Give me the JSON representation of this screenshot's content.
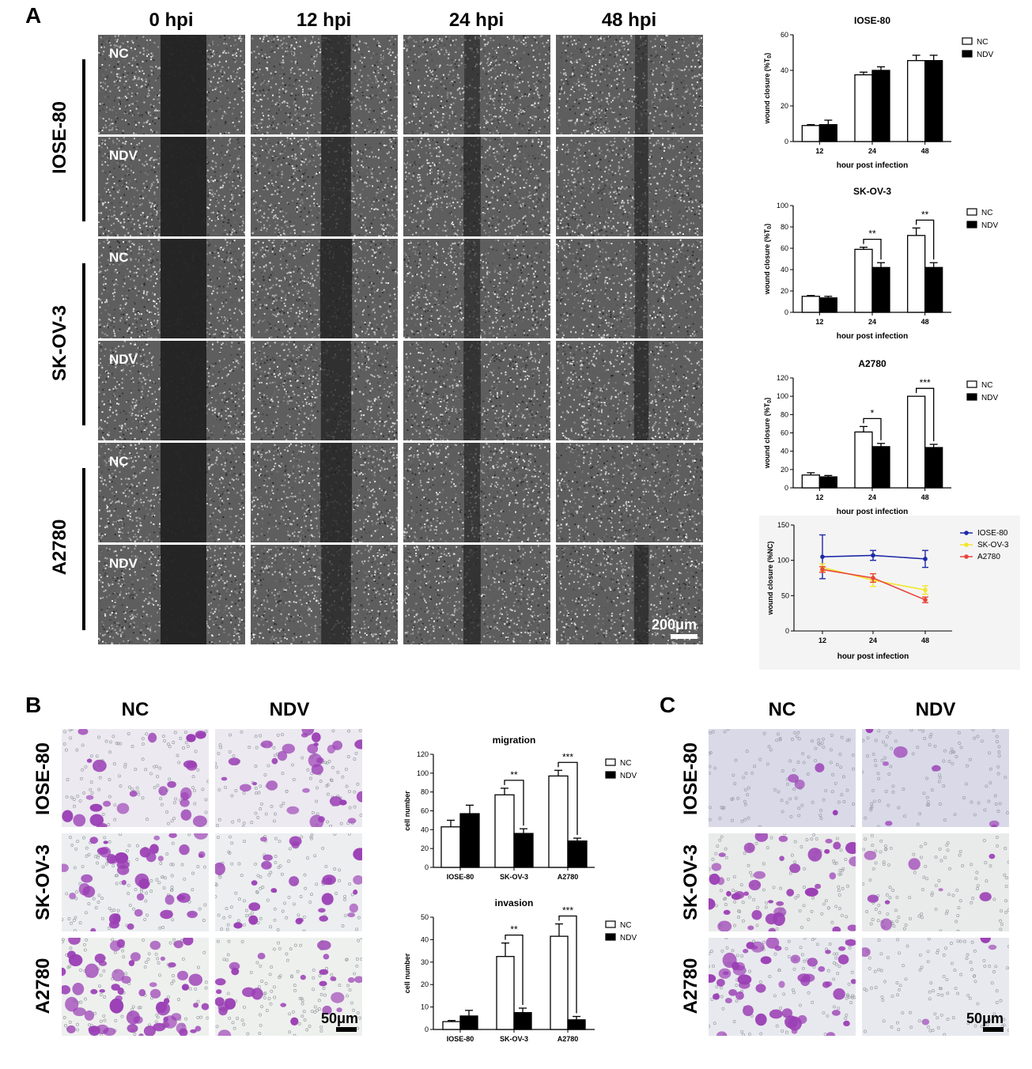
{
  "panel_a": {
    "letter": "A",
    "columns": [
      "0 hpi",
      "12 hpi",
      "24 hpi",
      "48 hpi"
    ],
    "rows": [
      {
        "cell_line": "IOSE-80",
        "conditions": [
          "NC",
          "NDV"
        ]
      },
      {
        "cell_line": "SK-OV-3",
        "conditions": [
          "NC",
          "NDV"
        ]
      },
      {
        "cell_line": "A2780",
        "conditions": [
          "NC",
          "NDV"
        ]
      }
    ],
    "gap_intensity": [
      [
        [
          1.0,
          0.62,
          0.4,
          0.32
        ],
        [
          1.0,
          0.65,
          0.6,
          0.52
        ]
      ],
      [
        [
          1.0,
          0.8,
          0.44,
          0.3
        ],
        [
          1.0,
          0.68,
          0.6,
          0.6
        ]
      ],
      [
        [
          1.0,
          0.78,
          0.42,
          0.0
        ],
        [
          1.0,
          0.64,
          0.6,
          0.6
        ]
      ]
    ],
    "scale_bar": "200μm"
  },
  "panel_b": {
    "letter": "B",
    "columns": [
      "NC",
      "NDV"
    ],
    "rows": [
      "IOSE-80",
      "SK-OV-3",
      "A2780"
    ],
    "cell_density": [
      [
        0.35,
        0.4
      ],
      [
        0.55,
        0.35
      ],
      [
        0.85,
        0.35
      ]
    ],
    "scale_bar": "50μm"
  },
  "panel_c": {
    "letter": "C",
    "columns": [
      "NC",
      "NDV"
    ],
    "rows": [
      "IOSE-80",
      "SK-OV-3",
      "A2780"
    ],
    "cell_density": [
      [
        0.06,
        0.1
      ],
      [
        0.55,
        0.12
      ],
      [
        0.7,
        0.05
      ]
    ],
    "scale_bar": "50μm"
  },
  "colors": {
    "stain": "#9b3fb5",
    "micro_bg": "#3a3a3a",
    "nc_fill": "#ffffff",
    "ndv_fill": "#000000"
  },
  "chart_data": [
    {
      "id": "iose80",
      "type": "bar",
      "title": "IOSE-80",
      "xlabel": "hour post infection",
      "ylabel": "wound closure (%T",
      "ylabel_sub": "0",
      "ylabel_end": ")",
      "categories": [
        "12",
        "24",
        "48"
      ],
      "ylim": [
        0,
        60
      ],
      "yticks": [
        "0",
        "20",
        "40",
        "60"
      ],
      "series": [
        {
          "name": "NC",
          "values": [
            9,
            37.5,
            45.5
          ],
          "errors": [
            0.5,
            1.5,
            3
          ]
        },
        {
          "name": "NDV",
          "values": [
            9.5,
            40,
            45.5
          ],
          "errors": [
            2.5,
            2,
            3
          ]
        }
      ],
      "significance": []
    },
    {
      "id": "skov3",
      "type": "bar",
      "title": "SK-OV-3",
      "xlabel": "hour post infection",
      "ylabel": "wound closure (%T",
      "ylabel_sub": "0",
      "ylabel_end": ")",
      "categories": [
        "12",
        "24",
        "48"
      ],
      "ylim": [
        0,
        100
      ],
      "yticks": [
        "0",
        "20",
        "40",
        "60",
        "80",
        "100"
      ],
      "series": [
        {
          "name": "NC",
          "values": [
            15,
            59,
            72
          ],
          "errors": [
            0.8,
            2,
            7
          ]
        },
        {
          "name": "NDV",
          "values": [
            13.5,
            42,
            42
          ],
          "errors": [
            1.5,
            4.5,
            4.5
          ]
        }
      ],
      "significance": [
        {
          "category": 1,
          "label": "**"
        },
        {
          "category": 2,
          "label": "**"
        }
      ]
    },
    {
      "id": "a2780",
      "type": "bar",
      "title": "A2780",
      "xlabel": "hour post infection",
      "ylabel": "wound closure (%T",
      "ylabel_sub": "0",
      "ylabel_end": ")",
      "categories": [
        "12",
        "24",
        "48"
      ],
      "ylim": [
        0,
        120
      ],
      "yticks": [
        "0",
        "20",
        "40",
        "60",
        "80",
        "100",
        "120"
      ],
      "series": [
        {
          "name": "NC",
          "values": [
            14,
            61,
            100
          ],
          "errors": [
            2.5,
            6,
            0
          ]
        },
        {
          "name": "NDV",
          "values": [
            12,
            45,
            44
          ],
          "errors": [
            1.5,
            3.5,
            3.5
          ]
        }
      ],
      "significance": [
        {
          "category": 1,
          "label": "*"
        },
        {
          "category": 2,
          "label": "***"
        }
      ]
    },
    {
      "id": "wound_nc",
      "type": "line",
      "title": "",
      "xlabel": "hour post infection",
      "ylabel": "wound closure (%NC)",
      "x": [
        "12",
        "24",
        "48"
      ],
      "ylim": [
        0,
        150
      ],
      "yticks": [
        "0",
        "50",
        "100",
        "150"
      ],
      "series": [
        {
          "name": "IOSE-80",
          "color": "#1f2aa8",
          "values": [
            105,
            107,
            102
          ],
          "errors": [
            31,
            7,
            12
          ]
        },
        {
          "name": "SK-OV-3",
          "color": "#f2e62c",
          "values": [
            90,
            72,
            58
          ],
          "errors": [
            5,
            9,
            6
          ]
        },
        {
          "name": "A2780",
          "color": "#e8463c",
          "values": [
            87,
            75,
            44
          ],
          "errors": [
            4,
            6,
            4
          ]
        }
      ]
    },
    {
      "id": "migration",
      "type": "bar",
      "title": "migration",
      "xlabel": "",
      "ylabel": "cell number",
      "categories": [
        "IOSE-80",
        "SK-OV-3",
        "A2780"
      ],
      "ylim": [
        0,
        120
      ],
      "yticks": [
        "0",
        "20",
        "40",
        "60",
        "80",
        "100",
        "120"
      ],
      "series": [
        {
          "name": "NC",
          "values": [
            43,
            77,
            97
          ],
          "errors": [
            7,
            7,
            6
          ]
        },
        {
          "name": "NDV",
          "values": [
            57,
            36,
            28
          ],
          "errors": [
            9,
            5,
            3
          ]
        }
      ],
      "significance": [
        {
          "category": 1,
          "label": "**"
        },
        {
          "category": 2,
          "label": "***"
        }
      ]
    },
    {
      "id": "invasion",
      "type": "bar",
      "title": "invasion",
      "xlabel": "",
      "ylabel": "cell number",
      "categories": [
        "IOSE-80",
        "SK-OV-3",
        "A2780"
      ],
      "ylim": [
        0,
        50
      ],
      "yticks": [
        "0",
        "10",
        "20",
        "30",
        "40",
        "50"
      ],
      "series": [
        {
          "name": "NC",
          "values": [
            3.5,
            32.5,
            41.5
          ],
          "errors": [
            0.5,
            6,
            5.5
          ]
        },
        {
          "name": "NDV",
          "values": [
            6,
            7.5,
            4.3
          ],
          "errors": [
            2.5,
            2,
            1.5
          ]
        }
      ],
      "significance": [
        {
          "category": 1,
          "label": "**"
        },
        {
          "category": 2,
          "label": "***"
        }
      ]
    }
  ]
}
